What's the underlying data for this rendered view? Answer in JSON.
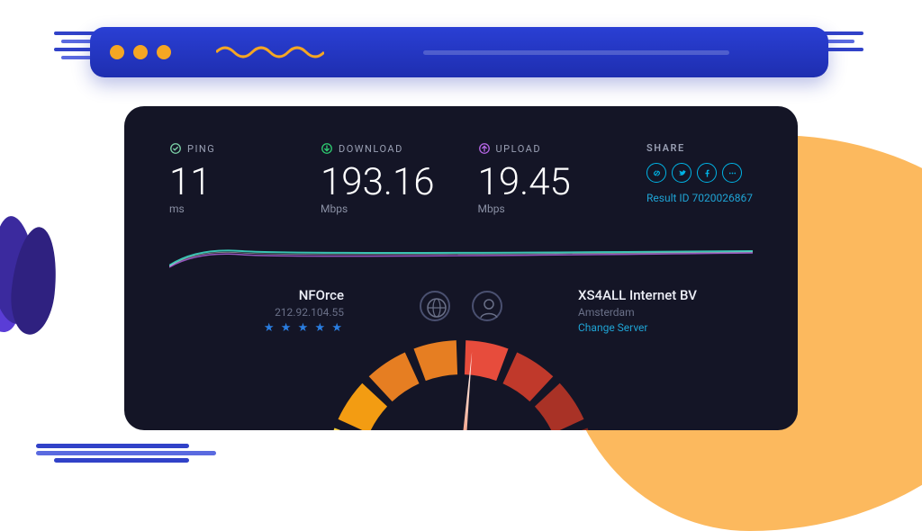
{
  "browser_bar": {
    "dot_color": "#f5a623",
    "bar_gradient": [
      "#2a3fd4",
      "#1e2eb0"
    ]
  },
  "card": {
    "background": "#141526"
  },
  "metrics": {
    "ping": {
      "label": "PING",
      "value": "11",
      "unit": "ms",
      "icon_color": "#7dd3a8"
    },
    "download": {
      "label": "DOWNLOAD",
      "value": "193.16",
      "unit": "Mbps",
      "icon_color": "#2ecc71"
    },
    "upload": {
      "label": "UPLOAD",
      "value": "19.45",
      "unit": "Mbps",
      "icon_color": "#b667e6"
    }
  },
  "share": {
    "title": "SHARE",
    "icon_color": "#00b4e6",
    "result_label": "Result ID",
    "result_id": "7020026867",
    "icons": [
      "link",
      "twitter",
      "facebook",
      "more"
    ]
  },
  "curve": {
    "colors": [
      "#3dd6c2",
      "#b667e6",
      "#ffffff"
    ]
  },
  "providers": {
    "left": {
      "name": "NFOrce",
      "ip": "212.92.104.55",
      "rating": 5
    },
    "right": {
      "name": "XS4ALL Internet BV",
      "location": "Amsterdam",
      "change_label": "Change Server"
    }
  },
  "gauge": {
    "segment_colors": [
      "#f4d03f",
      "#f39c12",
      "#e67e22",
      "#e67e22",
      "#e74c3c",
      "#c0392b",
      "#a93226",
      "#7b241c"
    ],
    "needle_angle_deg": 5,
    "hub_gradient": [
      "#3a5de8",
      "#1a2a8a"
    ],
    "ring_color": "#f5c469"
  },
  "decor": {
    "blob_orange": "#fcb95e",
    "blob_purple": [
      "#5a3dd6",
      "#3b2a9e",
      "#2f2180"
    ],
    "brush_blue": [
      "#3142c8",
      "#5a6ae0"
    ]
  }
}
